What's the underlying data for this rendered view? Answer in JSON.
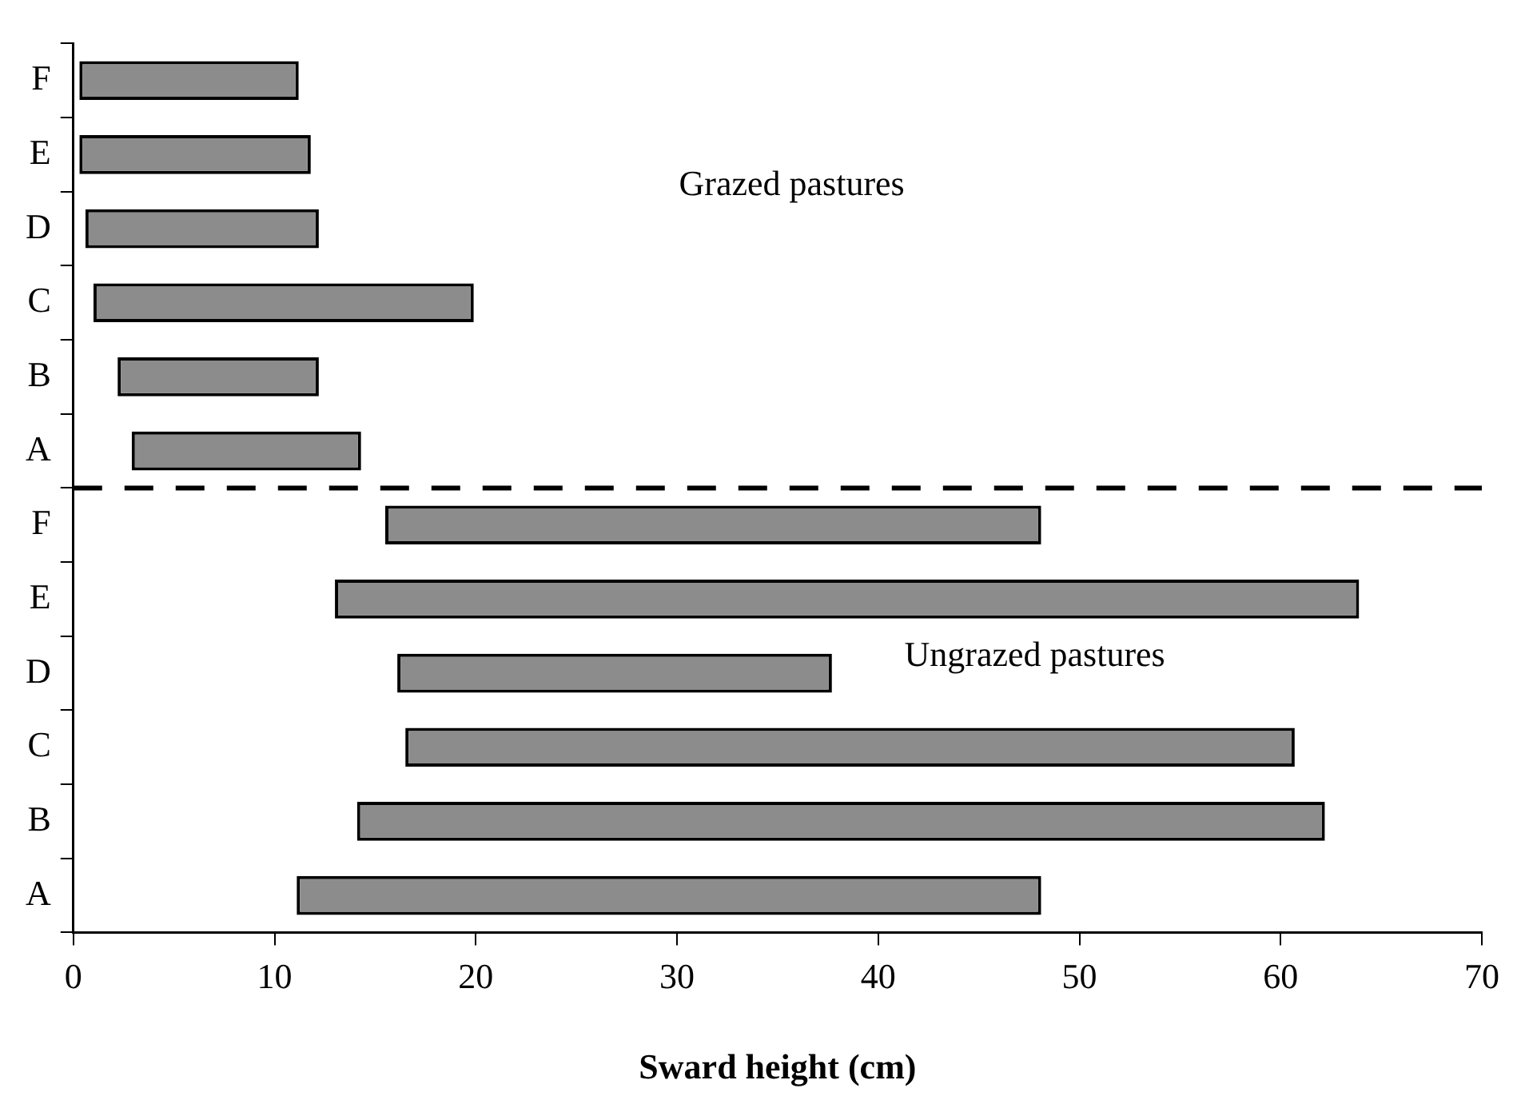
{
  "chart_data": {
    "type": "bar",
    "orientation": "horizontal",
    "xlabel": "Sward height (cm)",
    "categories": [
      "F",
      "E",
      "D",
      "C",
      "B",
      "A",
      "F",
      "E",
      "D",
      "C",
      "B",
      "A"
    ],
    "series": [
      {
        "color": "#8c8c8c",
        "base": [
          0.3,
          0.3,
          0.6,
          1.0,
          2.2,
          2.9,
          15.5,
          13.0,
          16.1,
          16.5,
          14.1,
          11.1
        ],
        "values": [
          10.9,
          11.5,
          11.6,
          18.9,
          10.0,
          11.4,
          32.6,
          50.9,
          21.6,
          44.2,
          48.1,
          37.0
        ]
      }
    ],
    "xlim": [
      0,
      70
    ],
    "xticks": [
      0,
      10,
      20,
      30,
      40,
      50,
      60,
      70
    ],
    "grid": false,
    "legend": false,
    "annotations": [
      "Grazed pastures",
      "Ungrazed pastures"
    ]
  }
}
